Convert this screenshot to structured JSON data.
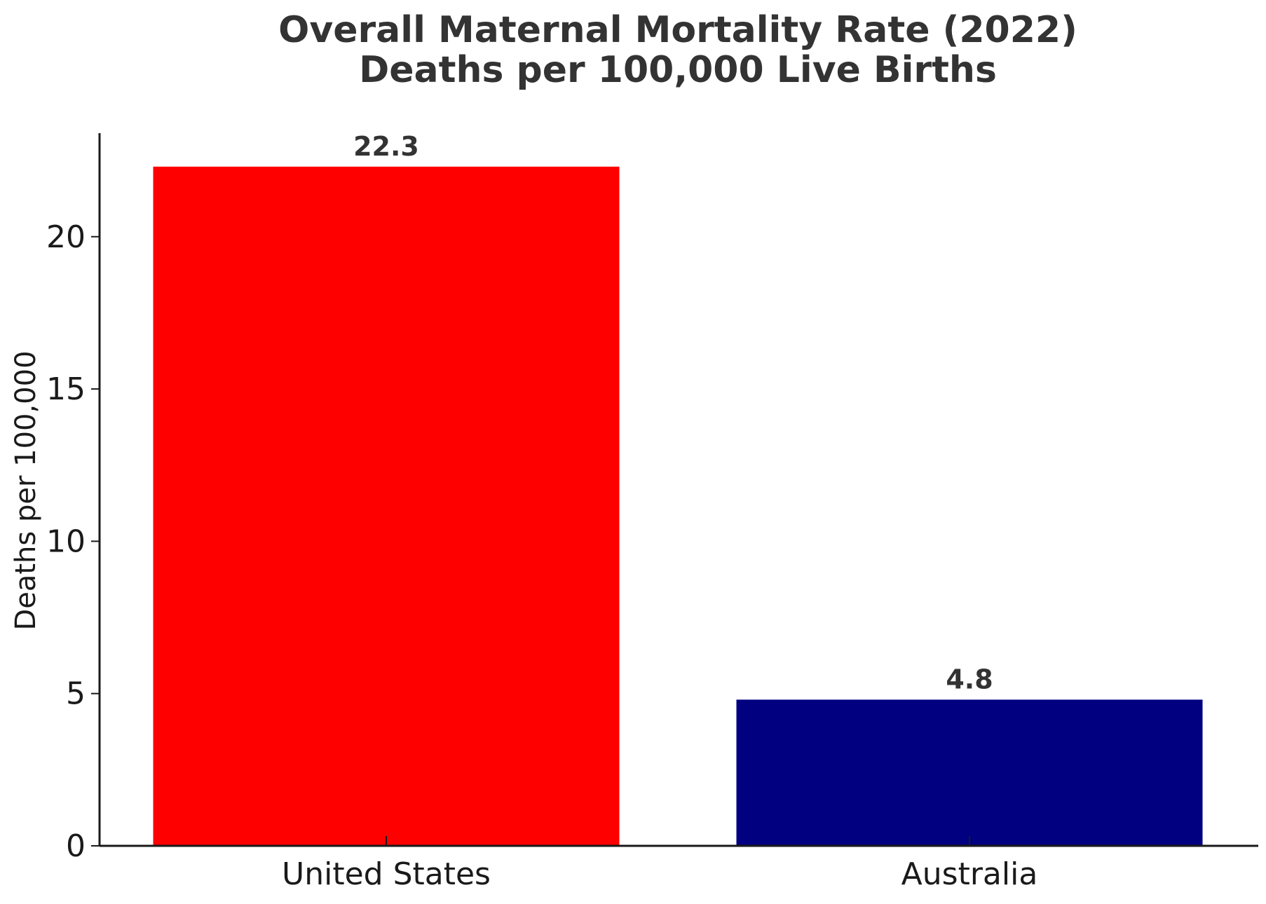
{
  "chart_data": {
    "type": "bar",
    "title_lines": [
      "Overall Maternal Mortality Rate (2022)",
      "Deaths per 100,000 Live Births"
    ],
    "xlabel": "",
    "ylabel": "Deaths per 100,000",
    "categories": [
      "United States",
      "Australia"
    ],
    "values": [
      22.3,
      4.8
    ],
    "value_labels": [
      "22.3",
      "4.8"
    ],
    "colors": [
      "#ff0000",
      "#000080"
    ],
    "ylim": [
      0,
      23.4
    ],
    "yticks": [
      0,
      5,
      10,
      15,
      20
    ],
    "ytick_labels": [
      "0",
      "5",
      "10",
      "15",
      "20"
    ],
    "grid": false,
    "legend": "none"
  }
}
